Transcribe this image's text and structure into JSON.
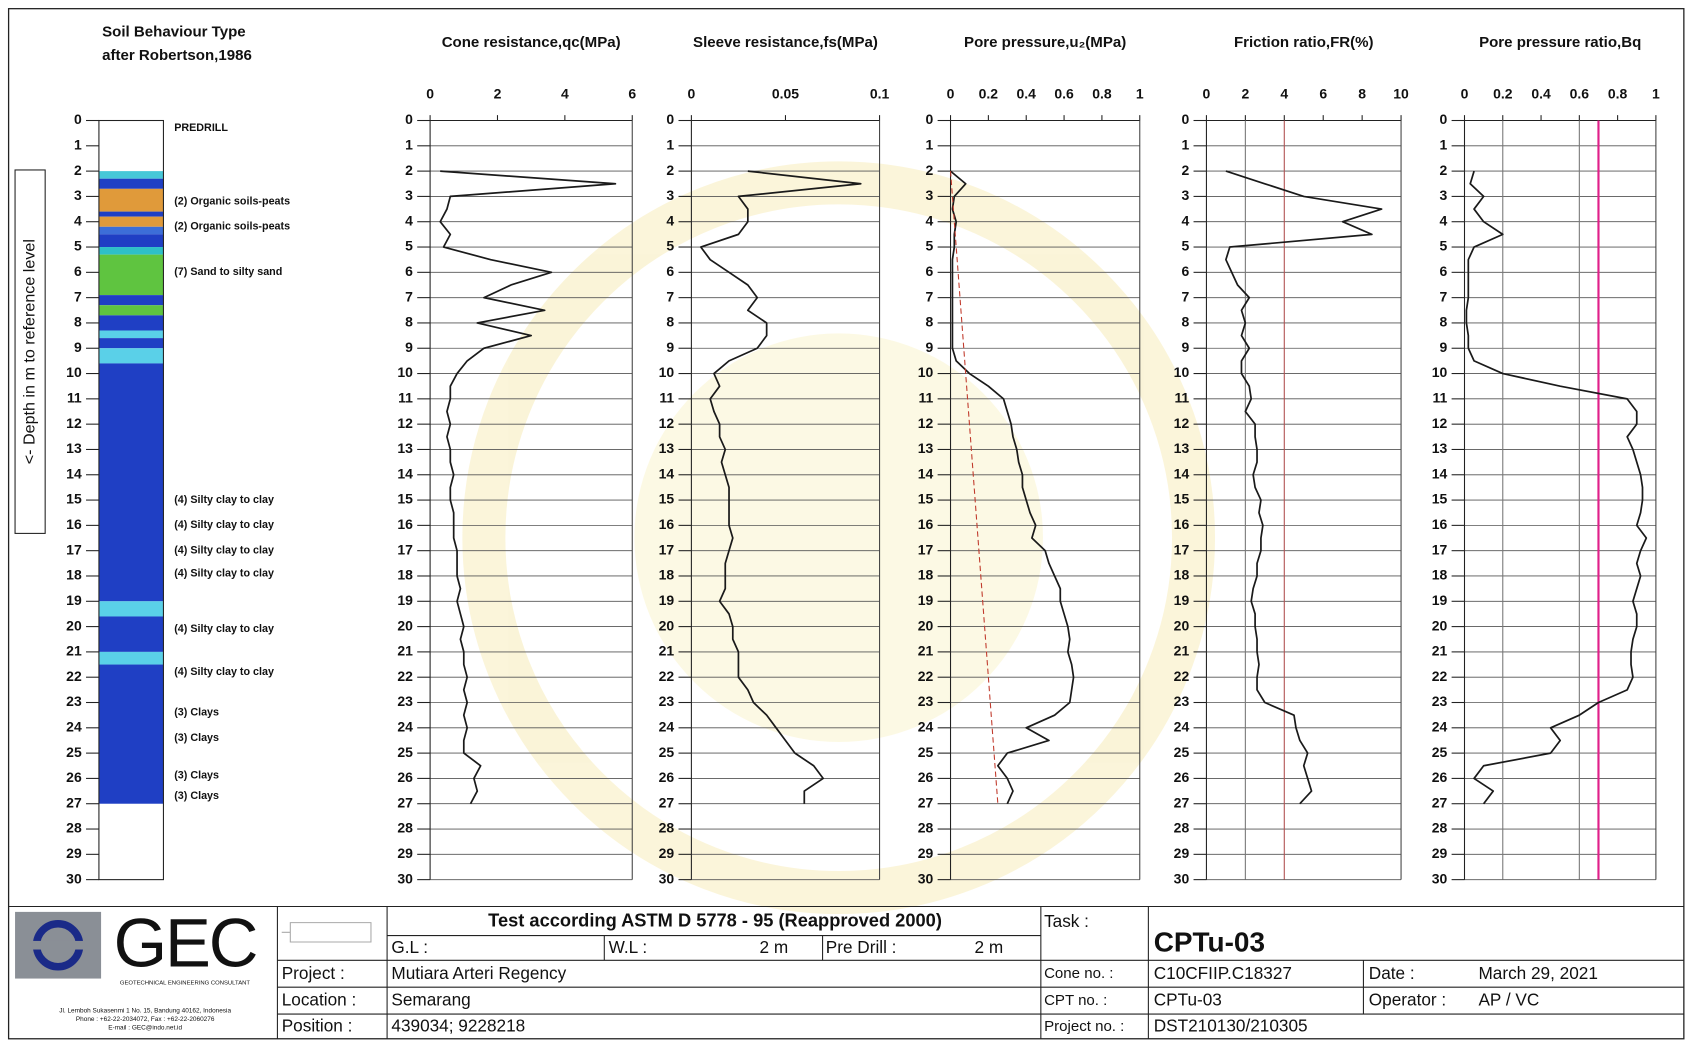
{
  "chart_data": [
    {
      "type": "soil-column",
      "title": [
        "Soil Behaviour Type",
        "after Robertson,1986"
      ],
      "ylabel": "<- Depth in m to reference level",
      "ylim": [
        0,
        30
      ],
      "y_inverted": true,
      "yticks": [
        0,
        1,
        2,
        3,
        4,
        5,
        6,
        7,
        8,
        9,
        10,
        11,
        12,
        13,
        14,
        15,
        16,
        17,
        18,
        19,
        20,
        21,
        22,
        23,
        24,
        25,
        26,
        27,
        28,
        29,
        30
      ],
      "layers": [
        {
          "top": 2.0,
          "bottom": 2.3,
          "color": "#47c8d8"
        },
        {
          "top": 2.3,
          "bottom": 2.7,
          "color": "#1f3fc4"
        },
        {
          "top": 2.7,
          "bottom": 3.6,
          "color": "#e09a3a"
        },
        {
          "top": 3.6,
          "bottom": 3.8,
          "color": "#1f3fc4"
        },
        {
          "top": 3.8,
          "bottom": 4.2,
          "color": "#e09a3a"
        },
        {
          "top": 4.2,
          "bottom": 4.5,
          "color": "#3c6ed8"
        },
        {
          "top": 4.5,
          "bottom": 5.0,
          "color": "#1f3fc4"
        },
        {
          "top": 5.0,
          "bottom": 5.3,
          "color": "#2ec0c8"
        },
        {
          "top": 5.3,
          "bottom": 6.9,
          "color": "#5fc440"
        },
        {
          "top": 6.9,
          "bottom": 7.3,
          "color": "#1f3fc4"
        },
        {
          "top": 7.3,
          "bottom": 7.7,
          "color": "#5fc440"
        },
        {
          "top": 7.7,
          "bottom": 8.3,
          "color": "#1f3fc4"
        },
        {
          "top": 8.3,
          "bottom": 8.6,
          "color": "#5ad0e8"
        },
        {
          "top": 8.6,
          "bottom": 9.0,
          "color": "#1f3fc4"
        },
        {
          "top": 9.0,
          "bottom": 9.6,
          "color": "#5ad0e8"
        },
        {
          "top": 9.6,
          "bottom": 19.0,
          "color": "#1f3fc4"
        },
        {
          "top": 19.0,
          "bottom": 19.6,
          "color": "#5ad0e8"
        },
        {
          "top": 19.6,
          "bottom": 21.0,
          "color": "#1f3fc4"
        },
        {
          "top": 21.0,
          "bottom": 21.5,
          "color": "#5ad0e8"
        },
        {
          "top": 21.5,
          "bottom": 27.0,
          "color": "#1f3fc4"
        }
      ],
      "annotations": [
        {
          "text": "PREDRILL",
          "depth": 0.3
        },
        {
          "text": "(2) Organic soils-peats",
          "depth": 3.2
        },
        {
          "text": "(2) Organic soils-peats",
          "depth": 4.2
        },
        {
          "text": "(7) Sand to silty sand",
          "depth": 6.0
        },
        {
          "text": "(4) Silty clay to clay",
          "depth": 15.0
        },
        {
          "text": "(4) Silty clay to clay",
          "depth": 16.0
        },
        {
          "text": "(4) Silty clay to clay",
          "depth": 17.0
        },
        {
          "text": "(4) Silty clay to clay",
          "depth": 17.9
        },
        {
          "text": "(4) Silty clay to clay",
          "depth": 20.1
        },
        {
          "text": "(4) Silty clay to clay",
          "depth": 21.8
        },
        {
          "text": "(3) Clays",
          "depth": 23.4
        },
        {
          "text": "(3) Clays",
          "depth": 24.4
        },
        {
          "text": "(3) Clays",
          "depth": 25.9
        },
        {
          "text": "(3) Clays",
          "depth": 26.7
        }
      ]
    },
    {
      "type": "depth-line",
      "title": "Cone resistance,qc(MPa)",
      "xlim": [
        0,
        6
      ],
      "xticks": [
        0,
        2,
        4,
        6
      ],
      "ylim": [
        0,
        30
      ],
      "y_inverted": true,
      "grid": true,
      "yticks": [
        0,
        1,
        2,
        3,
        4,
        5,
        6,
        7,
        8,
        9,
        10,
        11,
        12,
        13,
        14,
        15,
        16,
        17,
        18,
        19,
        20,
        21,
        22,
        23,
        24,
        25,
        26,
        27,
        28,
        29,
        30
      ],
      "series": [
        {
          "color": "#1a1a1a",
          "depth": [
            2,
            2.5,
            3,
            3.5,
            4,
            4.5,
            5,
            5.5,
            6,
            6.5,
            7,
            7.5,
            8,
            8.5,
            9,
            9.5,
            10,
            10.5,
            11,
            11.5,
            12,
            12.5,
            13,
            13.5,
            14,
            14.5,
            15,
            15.5,
            16,
            16.5,
            17,
            17.5,
            18,
            18.5,
            19,
            19.5,
            20,
            20.5,
            21,
            21.5,
            22,
            22.5,
            23,
            23.5,
            24,
            24.5,
            25,
            25.5,
            26,
            26.5,
            27
          ],
          "values": [
            0.3,
            5.5,
            0.6,
            0.5,
            0.3,
            0.6,
            0.4,
            1.8,
            3.6,
            2.4,
            1.6,
            3.4,
            1.4,
            3.0,
            1.6,
            1.1,
            0.8,
            0.6,
            0.6,
            0.5,
            0.6,
            0.5,
            0.6,
            0.6,
            0.7,
            0.6,
            0.6,
            0.7,
            0.7,
            0.7,
            0.8,
            0.8,
            0.8,
            0.9,
            0.8,
            0.9,
            1.0,
            0.9,
            1.0,
            1.0,
            1.1,
            1.0,
            1.1,
            1.0,
            1.1,
            1.0,
            1.0,
            1.5,
            1.3,
            1.4,
            1.2
          ]
        }
      ]
    },
    {
      "type": "depth-line",
      "title": "Sleeve resistance,fs(MPa)",
      "xlim": [
        0,
        0.1
      ],
      "xticks": [
        0,
        0.05,
        0.1
      ],
      "ylim": [
        0,
        30
      ],
      "y_inverted": true,
      "grid": true,
      "yticks": [
        0,
        1,
        2,
        3,
        4,
        5,
        6,
        7,
        8,
        9,
        10,
        11,
        12,
        13,
        14,
        15,
        16,
        17,
        18,
        19,
        20,
        21,
        22,
        23,
        24,
        25,
        26,
        27,
        28,
        29,
        30
      ],
      "series": [
        {
          "color": "#1a1a1a",
          "depth": [
            2,
            2.5,
            3,
            3.5,
            4,
            4.5,
            5,
            5.5,
            6,
            6.5,
            7,
            7.5,
            8,
            8.5,
            9,
            9.5,
            10,
            10.5,
            11,
            11.5,
            12,
            12.5,
            13,
            13.5,
            14,
            14.5,
            15,
            15.5,
            16,
            16.5,
            17,
            17.5,
            18,
            18.5,
            19,
            19.5,
            20,
            20.5,
            21,
            21.5,
            22,
            22.5,
            23,
            23.5,
            24,
            24.5,
            25,
            25.5,
            26,
            26.5,
            27
          ],
          "values": [
            0.03,
            0.09,
            0.025,
            0.03,
            0.03,
            0.025,
            0.005,
            0.01,
            0.02,
            0.03,
            0.035,
            0.03,
            0.04,
            0.04,
            0.035,
            0.02,
            0.012,
            0.015,
            0.01,
            0.012,
            0.015,
            0.015,
            0.018,
            0.016,
            0.018,
            0.02,
            0.02,
            0.02,
            0.02,
            0.022,
            0.02,
            0.018,
            0.018,
            0.018,
            0.015,
            0.02,
            0.022,
            0.022,
            0.025,
            0.025,
            0.025,
            0.03,
            0.033,
            0.04,
            0.045,
            0.05,
            0.055,
            0.065,
            0.07,
            0.06,
            0.06
          ]
        }
      ]
    },
    {
      "type": "depth-line",
      "title": "Pore pressure,u₂(MPa)",
      "xlim": [
        0,
        1
      ],
      "xticks": [
        0,
        0.2,
        0.4,
        0.6,
        0.8,
        1
      ],
      "ylim": [
        0,
        30
      ],
      "y_inverted": true,
      "grid": true,
      "yticks": [
        0,
        1,
        2,
        3,
        4,
        5,
        6,
        7,
        8,
        9,
        10,
        11,
        12,
        13,
        14,
        15,
        16,
        17,
        18,
        19,
        20,
        21,
        22,
        23,
        24,
        25,
        26,
        27,
        28,
        29,
        30
      ],
      "series": [
        {
          "color": "#1a1a1a",
          "depth": [
            2,
            2.5,
            3,
            3.5,
            4,
            4.5,
            5,
            5.5,
            6,
            6.5,
            7,
            7.5,
            8,
            8.5,
            9,
            9.5,
            10,
            10.5,
            11,
            11.5,
            12,
            12.5,
            13,
            13.5,
            14,
            14.5,
            15,
            15.5,
            16,
            16.5,
            17,
            17.5,
            18,
            18.5,
            19,
            19.5,
            20,
            20.5,
            21,
            21.5,
            22,
            22.5,
            23,
            23.5,
            24,
            24.5,
            25,
            25.5,
            26,
            26.5,
            27
          ],
          "values": [
            0,
            0.08,
            0.02,
            0.01,
            0.03,
            0.02,
            0.02,
            0.01,
            0.01,
            0.01,
            0.01,
            0.01,
            0.01,
            0.01,
            0.01,
            0.03,
            0.1,
            0.2,
            0.28,
            0.3,
            0.32,
            0.33,
            0.35,
            0.36,
            0.38,
            0.38,
            0.4,
            0.42,
            0.45,
            0.43,
            0.5,
            0.52,
            0.55,
            0.58,
            0.58,
            0.6,
            0.62,
            0.63,
            0.62,
            0.64,
            0.65,
            0.64,
            0.63,
            0.55,
            0.4,
            0.52,
            0.3,
            0.25,
            0.3,
            0.33,
            0.3
          ]
        },
        {
          "color": "#c0392b",
          "dashed": true,
          "depth": [
            2,
            27
          ],
          "values": [
            0,
            0.25
          ]
        }
      ]
    },
    {
      "type": "depth-line",
      "title": "Friction ratio,FR(%)",
      "xlim": [
        0,
        10
      ],
      "xticks": [
        0,
        2,
        4,
        6,
        8,
        10
      ],
      "ylim": [
        0,
        30
      ],
      "y_inverted": true,
      "grid": true,
      "yticks": [
        0,
        1,
        2,
        3,
        4,
        5,
        6,
        7,
        8,
        9,
        10,
        11,
        12,
        13,
        14,
        15,
        16,
        17,
        18,
        19,
        20,
        21,
        22,
        23,
        24,
        25,
        26,
        27,
        28,
        29,
        30
      ],
      "ref_lines": [
        {
          "value": 2,
          "color": "#777777"
        },
        {
          "value": 4,
          "color": "#b05050"
        }
      ],
      "series": [
        {
          "color": "#1a1a1a",
          "depth": [
            2,
            2.5,
            3,
            3.5,
            4,
            4.5,
            5,
            5.5,
            6,
            6.5,
            7,
            7.5,
            8,
            8.5,
            9,
            9.5,
            10,
            10.5,
            11,
            11.5,
            12,
            12.5,
            13,
            13.5,
            14,
            14.5,
            15,
            15.5,
            16,
            16.5,
            17,
            17.5,
            18,
            18.5,
            19,
            19.5,
            20,
            20.5,
            21,
            21.5,
            22,
            22.5,
            23,
            23.5,
            24,
            24.5,
            25,
            25.5,
            26,
            26.5,
            27
          ],
          "values": [
            1.0,
            3.0,
            5,
            9,
            7,
            8.5,
            1.2,
            1.0,
            1.3,
            1.6,
            2.2,
            1.8,
            2.0,
            1.8,
            2.2,
            1.8,
            1.8,
            2.2,
            2.3,
            2.0,
            2.5,
            2.5,
            2.6,
            2.6,
            2.4,
            2.5,
            2.8,
            2.7,
            2.9,
            2.8,
            2.8,
            2.6,
            2.6,
            2.4,
            2.3,
            2.5,
            2.5,
            2.6,
            2.6,
            2.7,
            2.6,
            2.6,
            3.0,
            4.5,
            4.6,
            4.8,
            5.2,
            5.0,
            5.2,
            5.4,
            4.8
          ]
        }
      ]
    },
    {
      "type": "depth-line",
      "title": "Pore pressure ratio,Bq",
      "xlim": [
        0,
        1
      ],
      "xticks": [
        0,
        0.2,
        0.4,
        0.6,
        0.8,
        1
      ],
      "ylim": [
        0,
        30
      ],
      "y_inverted": true,
      "grid": true,
      "yticks": [
        0,
        1,
        2,
        3,
        4,
        5,
        6,
        7,
        8,
        9,
        10,
        11,
        12,
        13,
        14,
        15,
        16,
        17,
        18,
        19,
        20,
        21,
        22,
        23,
        24,
        25,
        26,
        27,
        28,
        29,
        30
      ],
      "ref_lines": [
        {
          "value": 0.2,
          "color": "#777777"
        },
        {
          "value": 0.6,
          "color": "#777777"
        },
        {
          "value": 0.7,
          "color": "#e0208a"
        }
      ],
      "series": [
        {
          "color": "#1a1a1a",
          "depth": [
            2,
            2.5,
            3,
            3.5,
            4,
            4.5,
            5,
            5.5,
            6,
            6.5,
            7,
            7.5,
            8,
            8.5,
            9,
            9.5,
            10,
            10.5,
            11,
            11.5,
            12,
            12.5,
            13,
            13.5,
            14,
            14.5,
            15,
            15.5,
            16,
            16.5,
            17,
            17.5,
            18,
            18.5,
            19,
            19.5,
            20,
            20.5,
            21,
            21.5,
            22,
            22.5,
            23,
            23.5,
            24,
            24.5,
            25,
            25.5,
            26,
            26.5,
            27
          ],
          "values": [
            0.05,
            0.03,
            0.1,
            0.05,
            0.1,
            0.2,
            0.05,
            0.02,
            0.02,
            0.02,
            0.02,
            0.01,
            0.01,
            0.02,
            0.02,
            0.05,
            0.2,
            0.5,
            0.85,
            0.9,
            0.9,
            0.85,
            0.88,
            0.9,
            0.92,
            0.93,
            0.93,
            0.92,
            0.9,
            0.95,
            0.92,
            0.9,
            0.92,
            0.9,
            0.88,
            0.9,
            0.9,
            0.88,
            0.87,
            0.87,
            0.88,
            0.85,
            0.7,
            0.6,
            0.45,
            0.5,
            0.45,
            0.1,
            0.05,
            0.15,
            0.1
          ]
        }
      ]
    }
  ],
  "title_block": {
    "company": "GEC",
    "company_subtitle": "GEOTECHNICAL ENGINEERING CONSULTANT",
    "address": [
      "Jl. Lemboh Sukasenmi 1 No. 15, Bandung 40162, Indonesia",
      "Phone : +62-22-2034072, Fax : +62-22-2060276",
      "E-mail : GEC@indo.net.id"
    ],
    "standard": "Test according ASTM D 5778 - 95 (Reapproved 2000)",
    "gl_label": "G.L :",
    "wl_label": "W.L :",
    "wl_value": "2 m",
    "predrill_label": "Pre Drill :",
    "predrill_value": "2 m",
    "project_label": "Project :",
    "project": "Mutiara Arteri Regency",
    "location_label": "Location :",
    "location": "Semarang",
    "position_label": "Position :",
    "position": "439034; 9228218",
    "task_label": "Task :",
    "task": "CPTu-03",
    "cone_no_label": "Cone no. :",
    "cone_no": "C10CFIIP.C18327",
    "date_label": "Date :",
    "date": "March 29, 2021",
    "cpt_no_label": "CPT no. :",
    "cpt_no": "CPTu-03",
    "operator_label": "Operator :",
    "operator": "AP / VC",
    "project_no_label": "Project no. :",
    "project_no": "DST210130/210305"
  }
}
